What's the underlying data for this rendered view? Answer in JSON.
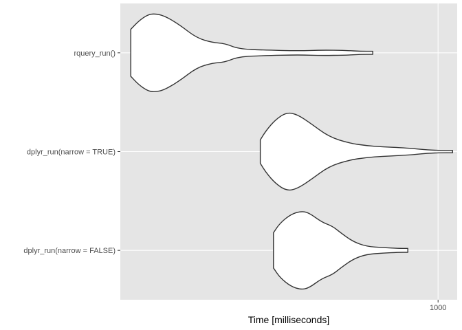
{
  "chart_data": {
    "type": "violin",
    "title": "",
    "xlabel": "Time [milliseconds]",
    "ylabel": "",
    "x_scale": "log10",
    "x_ticks": [
      1000
    ],
    "x_tick_labels": [
      "1000"
    ],
    "xlim": [
      205,
      1100
    ],
    "categories": [
      "rquery_run()",
      "dplyr_run(narrow = TRUE)",
      "dplyr_run(narrow = FALSE)"
    ],
    "grid": true,
    "legend": "none",
    "colors": {
      "panel_bg": "#e5e5e5",
      "grid": "#ffffff",
      "violin_fill": "#ffffff",
      "violin_stroke": "#333333"
    },
    "series": [
      {
        "category": "rquery_run()",
        "min": 216,
        "max": 722,
        "profile": [
          [
            216,
            0.6
          ],
          [
            225,
            0.82
          ],
          [
            235,
            0.97
          ],
          [
            243,
            1.0
          ],
          [
            255,
            0.95
          ],
          [
            275,
            0.72
          ],
          [
            300,
            0.38
          ],
          [
            325,
            0.26
          ],
          [
            345,
            0.24
          ],
          [
            370,
            0.1
          ],
          [
            420,
            0.07
          ],
          [
            500,
            0.05
          ],
          [
            560,
            0.07
          ],
          [
            630,
            0.06
          ],
          [
            680,
            0.04
          ],
          [
            722,
            0.04
          ]
        ]
      },
      {
        "category": "dplyr_run(narrow = TRUE)",
        "min": 412,
        "max": 1075,
        "profile": [
          [
            412,
            0.3
          ],
          [
            425,
            0.55
          ],
          [
            445,
            0.82
          ],
          [
            470,
            1.0
          ],
          [
            495,
            0.95
          ],
          [
            530,
            0.72
          ],
          [
            580,
            0.38
          ],
          [
            640,
            0.22
          ],
          [
            700,
            0.15
          ],
          [
            760,
            0.12
          ],
          [
            830,
            0.1
          ],
          [
            880,
            0.08
          ],
          [
            950,
            0.04
          ],
          [
            1020,
            0.03
          ],
          [
            1075,
            0.03
          ]
        ]
      },
      {
        "category": "dplyr_run(narrow = FALSE)",
        "min": 440,
        "max": 860,
        "profile": [
          [
            440,
            0.45
          ],
          [
            455,
            0.7
          ],
          [
            480,
            0.92
          ],
          [
            505,
            1.0
          ],
          [
            525,
            0.96
          ],
          [
            560,
            0.72
          ],
          [
            590,
            0.62
          ],
          [
            615,
            0.45
          ],
          [
            655,
            0.22
          ],
          [
            700,
            0.1
          ],
          [
            760,
            0.07
          ],
          [
            820,
            0.05
          ],
          [
            860,
            0.05
          ]
        ]
      }
    ]
  }
}
